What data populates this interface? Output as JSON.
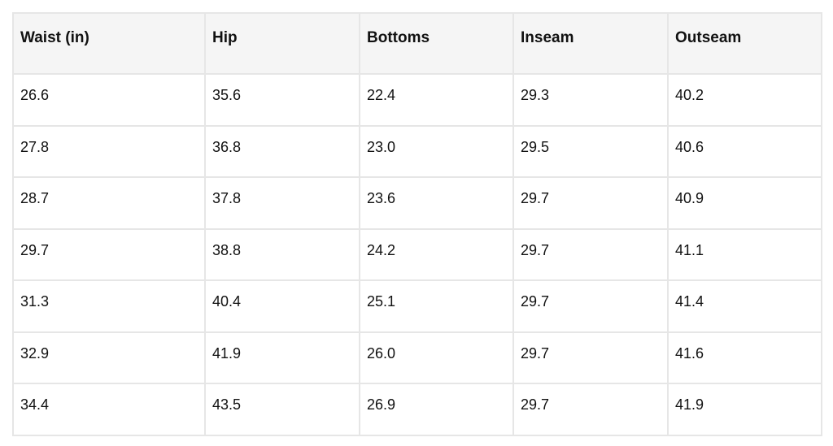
{
  "table": {
    "header": [
      "Waist (in)",
      "Hip",
      "Bottoms",
      "Inseam",
      "Outseam"
    ],
    "rows": [
      [
        "26.6",
        "35.6",
        "22.4",
        "29.3",
        "40.2"
      ],
      [
        "27.8",
        "36.8",
        "23.0",
        "29.5",
        "40.6"
      ],
      [
        "28.7",
        "37.8",
        "23.6",
        "29.7",
        "40.9"
      ],
      [
        "29.7",
        "38.8",
        "24.2",
        "29.7",
        "41.1"
      ],
      [
        "31.3",
        "40.4",
        "25.1",
        "29.7",
        "41.4"
      ],
      [
        "32.9",
        "41.9",
        "26.0",
        "29.7",
        "41.6"
      ],
      [
        "34.4",
        "43.5",
        "26.9",
        "29.7",
        "41.9"
      ]
    ]
  }
}
